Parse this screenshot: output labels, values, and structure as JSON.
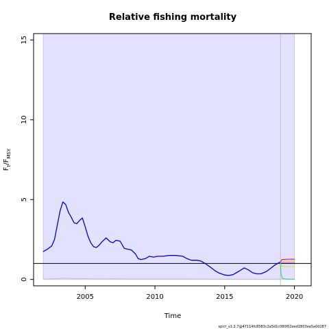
{
  "chart_data": {
    "type": "line",
    "title": "Relative fishing mortality",
    "xlabel": "Time",
    "ylabel_main": "F",
    "ylabel_sub1": "t",
    "ylabel_mid": "/F",
    "ylabel_sub2": "MSY",
    "xlim": [
      2001.3,
      2021.2
    ],
    "ylim": [
      -0.4,
      15.4
    ],
    "x_ticks": [
      2005,
      2010,
      2015,
      2020
    ],
    "x_tick_labels": [
      "2005",
      "2010",
      "2015",
      "2020"
    ],
    "y_ticks": [
      0,
      5,
      10,
      15
    ],
    "y_tick_labels": [
      "0",
      "5",
      "10",
      "15"
    ],
    "reference_line": 1.0,
    "ci_band": {
      "x_start": 2002.0,
      "x_end": 2020.0,
      "y_low": 0.0,
      "y_high": 15.4
    },
    "forecast_start": 2019.0,
    "series": [
      {
        "color": "#0000cc",
        "x": [
          2002.0,
          2002.3,
          2002.6,
          2002.8,
          2003.0,
          2003.2,
          2003.4,
          2003.6,
          2003.8,
          2004.0,
          2004.2,
          2004.4,
          2004.6,
          2004.8,
          2005.0,
          2005.2,
          2005.4,
          2005.6,
          2005.8,
          2006.0,
          2006.2,
          2006.5,
          2006.8,
          2007.0,
          2007.2,
          2007.5,
          2007.8,
          2008.0,
          2008.3,
          2008.6,
          2008.8,
          2009.0,
          2009.3,
          2009.6,
          2009.9,
          2010.2,
          2010.6,
          2011.0,
          2011.5,
          2012.0,
          2012.3,
          2012.6,
          2013.0,
          2013.3,
          2013.6,
          2014.0,
          2014.3,
          2014.6,
          2015.0,
          2015.3,
          2015.6,
          2016.0,
          2016.4,
          2016.7,
          2017.0,
          2017.3,
          2017.6,
          2018.0,
          2018.3,
          2018.6,
          2018.9,
          2019.0
        ],
        "y": [
          1.75,
          1.9,
          2.1,
          2.5,
          3.4,
          4.3,
          4.85,
          4.7,
          4.2,
          3.9,
          3.55,
          3.5,
          3.7,
          3.85,
          3.3,
          2.7,
          2.3,
          2.05,
          2.0,
          2.15,
          2.35,
          2.6,
          2.35,
          2.3,
          2.45,
          2.4,
          1.95,
          1.9,
          1.85,
          1.6,
          1.3,
          1.25,
          1.3,
          1.45,
          1.4,
          1.45,
          1.45,
          1.5,
          1.5,
          1.45,
          1.3,
          1.2,
          1.2,
          1.15,
          1.0,
          0.75,
          0.55,
          0.4,
          0.28,
          0.25,
          0.3,
          0.5,
          0.72,
          0.6,
          0.42,
          0.35,
          0.35,
          0.5,
          0.7,
          0.9,
          1.05,
          1.1
        ]
      },
      {
        "color": "#bbbbdd",
        "x": [
          2002.0,
          2003.0,
          2003.5,
          2004.0,
          2005.0,
          2006.0,
          2007.0,
          2008.0,
          2010.0,
          2012.0,
          2014.0,
          2016.0,
          2018.0,
          2019.0
        ],
        "y": [
          0.02,
          0.05,
          0.08,
          0.06,
          0.05,
          0.03,
          0.04,
          0.03,
          0.03,
          0.03,
          0.02,
          0.01,
          0.01,
          0.02
        ]
      },
      {
        "color": "#cc0066",
        "x": [
          2019.0,
          2019.1,
          2019.5,
          2020.0
        ],
        "y": [
          1.1,
          1.25,
          1.27,
          1.27
        ]
      },
      {
        "color": "#ffbb00",
        "x": [
          2019.0,
          2019.1,
          2019.5,
          2020.0
        ],
        "y": [
          1.1,
          1.15,
          1.15,
          1.15
        ]
      },
      {
        "color": "#aa66ee",
        "x": [
          2019.0,
          2019.1,
          2019.5,
          2020.0
        ],
        "y": [
          1.1,
          1.05,
          1.05,
          1.05
        ]
      },
      {
        "color": "#dddd33",
        "x": [
          2019.0,
          2019.1,
          2019.5,
          2020.0
        ],
        "y": [
          1.0,
          0.82,
          0.8,
          0.8
        ]
      },
      {
        "color": "#33cc66",
        "x": [
          2019.0,
          2019.05,
          2019.15,
          2019.5,
          2020.0
        ],
        "y": [
          1.0,
          0.3,
          0.05,
          0.02,
          0.02
        ]
      }
    ]
  },
  "footer": "spict_v1.2.7@47114fc8383c2a5d1c080f02eed2803ea5a0d287",
  "colors": {
    "band_fill": "#e2e2ff",
    "band_edge": "#c8c8f0",
    "ref_line": "#000000",
    "vline": "#c0c0c0"
  }
}
